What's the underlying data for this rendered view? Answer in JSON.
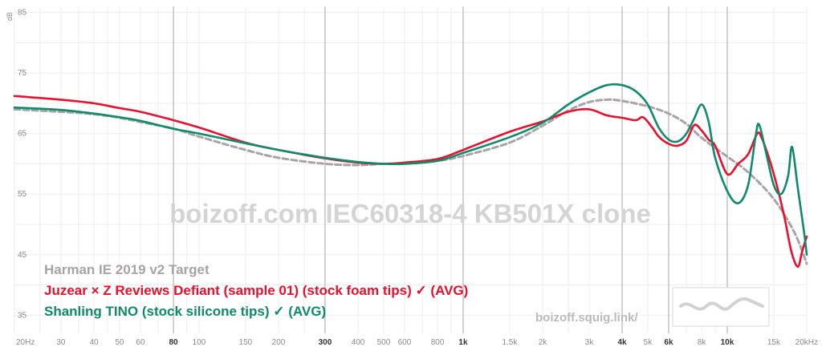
{
  "chart_data": {
    "type": "line",
    "xscale": "log",
    "xlim": [
      20,
      20000
    ],
    "ylim": [
      32,
      86
    ],
    "grid": true,
    "ylabel": "dB",
    "y_ticks": [
      85,
      75,
      65,
      55,
      45,
      35
    ],
    "x_ticks": [
      {
        "value": 20,
        "label": "20Hz",
        "major": false
      },
      {
        "value": 30,
        "label": "30",
        "major": false
      },
      {
        "value": 40,
        "label": "40",
        "major": false
      },
      {
        "value": 50,
        "label": "50",
        "major": false
      },
      {
        "value": 60,
        "label": "60",
        "major": false
      },
      {
        "value": 80,
        "label": "80",
        "major": true
      },
      {
        "value": 100,
        "label": "100",
        "major": false
      },
      {
        "value": 150,
        "label": "150",
        "major": false
      },
      {
        "value": 200,
        "label": "200",
        "major": false
      },
      {
        "value": 300,
        "label": "300",
        "major": true
      },
      {
        "value": 400,
        "label": "400",
        "major": false
      },
      {
        "value": 500,
        "label": "500",
        "major": false
      },
      {
        "value": 600,
        "label": "600",
        "major": false
      },
      {
        "value": 800,
        "label": "800",
        "major": false
      },
      {
        "value": 1000,
        "label": "1k",
        "major": true
      },
      {
        "value": 1500,
        "label": "1.5k",
        "major": false
      },
      {
        "value": 2000,
        "label": "2k",
        "major": false
      },
      {
        "value": 3000,
        "label": "3k",
        "major": false
      },
      {
        "value": 4000,
        "label": "4k",
        "major": true
      },
      {
        "value": 5000,
        "label": "5k",
        "major": false
      },
      {
        "value": 6000,
        "label": "6k",
        "major": true
      },
      {
        "value": 8000,
        "label": "8k",
        "major": false
      },
      {
        "value": 10000,
        "label": "10k",
        "major": true
      },
      {
        "value": 15000,
        "label": "15k",
        "major": false
      },
      {
        "value": 20000,
        "label": "20kHz",
        "major": false
      }
    ],
    "watermark": "boizoff.com IEC60318-4 KB501X clone",
    "site_label": "boizoff.squig.link/",
    "series": [
      {
        "name": "Harman IE 2019 v2 Target",
        "color": "#a8a3a6",
        "dashed": true,
        "points": [
          [
            20,
            69
          ],
          [
            30,
            68.6
          ],
          [
            40,
            68.2
          ],
          [
            50,
            67.6
          ],
          [
            60,
            66.9
          ],
          [
            80,
            65.8
          ],
          [
            100,
            64.5
          ],
          [
            150,
            62.3
          ],
          [
            200,
            61
          ],
          [
            300,
            60
          ],
          [
            400,
            59.8
          ],
          [
            500,
            60
          ],
          [
            600,
            60
          ],
          [
            800,
            60.5
          ],
          [
            1000,
            61.3
          ],
          [
            1500,
            63.5
          ],
          [
            2000,
            66.3
          ],
          [
            2500,
            68.8
          ],
          [
            3000,
            70.2
          ],
          [
            3500,
            70.6
          ],
          [
            4000,
            70.4
          ],
          [
            5000,
            69.5
          ],
          [
            6000,
            68.3
          ],
          [
            7000,
            66.6
          ],
          [
            8000,
            64.3
          ],
          [
            10000,
            61.2
          ],
          [
            12000,
            58.6
          ],
          [
            15000,
            54.2
          ],
          [
            18000,
            48.6
          ],
          [
            20000,
            43.5
          ]
        ]
      },
      {
        "name": "Juzear × Z Reviews Defiant (sample 01) (stock foam tips) ✓ (AVG)",
        "color": "#e8102c",
        "dashed": false,
        "points": [
          [
            20,
            71.2
          ],
          [
            30,
            70.6
          ],
          [
            40,
            70
          ],
          [
            50,
            69.2
          ],
          [
            60,
            68.6
          ],
          [
            80,
            67.2
          ],
          [
            100,
            66
          ],
          [
            150,
            63.5
          ],
          [
            200,
            62.3
          ],
          [
            300,
            60.9
          ],
          [
            400,
            60.2
          ],
          [
            500,
            60
          ],
          [
            600,
            60.2
          ],
          [
            800,
            60.8
          ],
          [
            1000,
            62.3
          ],
          [
            1500,
            65.3
          ],
          [
            2000,
            67
          ],
          [
            2500,
            68.6
          ],
          [
            3000,
            69
          ],
          [
            3500,
            68
          ],
          [
            4000,
            67.6
          ],
          [
            4500,
            67.2
          ],
          [
            4800,
            67.7
          ],
          [
            5200,
            66
          ],
          [
            5500,
            64.5
          ],
          [
            6000,
            63.3
          ],
          [
            6500,
            63
          ],
          [
            7000,
            63.8
          ],
          [
            7500,
            66.4
          ],
          [
            8000,
            65.5
          ],
          [
            8500,
            64
          ],
          [
            9000,
            63
          ],
          [
            10000,
            58.3
          ],
          [
            11000,
            60
          ],
          [
            12000,
            61.6
          ],
          [
            13000,
            65
          ],
          [
            13500,
            64.3
          ],
          [
            14500,
            60.5
          ],
          [
            15500,
            56
          ],
          [
            16500,
            51
          ],
          [
            17500,
            45.5
          ],
          [
            18500,
            43
          ],
          [
            19200,
            45.5
          ],
          [
            20000,
            48
          ]
        ]
      },
      {
        "name": "Shanling TINO (stock silicone tips) ✓ (AVG)",
        "color": "#0f8a6b",
        "dashed": false,
        "points": [
          [
            20,
            69.3
          ],
          [
            30,
            68.9
          ],
          [
            40,
            68.3
          ],
          [
            50,
            67.7
          ],
          [
            60,
            67.1
          ],
          [
            80,
            65.8
          ],
          [
            100,
            65
          ],
          [
            150,
            63.4
          ],
          [
            200,
            62.3
          ],
          [
            300,
            61
          ],
          [
            400,
            60.3
          ],
          [
            500,
            60
          ],
          [
            600,
            60
          ],
          [
            800,
            60.5
          ],
          [
            1000,
            61.8
          ],
          [
            1500,
            64.4
          ],
          [
            2000,
            66.8
          ],
          [
            2500,
            69.8
          ],
          [
            3000,
            71.8
          ],
          [
            3500,
            73
          ],
          [
            4000,
            73
          ],
          [
            4500,
            72
          ],
          [
            5000,
            69.8
          ],
          [
            5500,
            66
          ],
          [
            6000,
            64
          ],
          [
            6500,
            63.7
          ],
          [
            7000,
            65
          ],
          [
            7500,
            67.5
          ],
          [
            8000,
            69.8
          ],
          [
            8500,
            67
          ],
          [
            9000,
            61
          ],
          [
            10000,
            55.5
          ],
          [
            11000,
            53.5
          ],
          [
            12000,
            56.5
          ],
          [
            12800,
            64.5
          ],
          [
            13200,
            66.5
          ],
          [
            14000,
            62
          ],
          [
            15000,
            56.5
          ],
          [
            16000,
            55
          ],
          [
            17000,
            58
          ],
          [
            17600,
            62.8
          ],
          [
            18500,
            56
          ],
          [
            19500,
            49
          ],
          [
            20000,
            45
          ]
        ]
      }
    ]
  }
}
